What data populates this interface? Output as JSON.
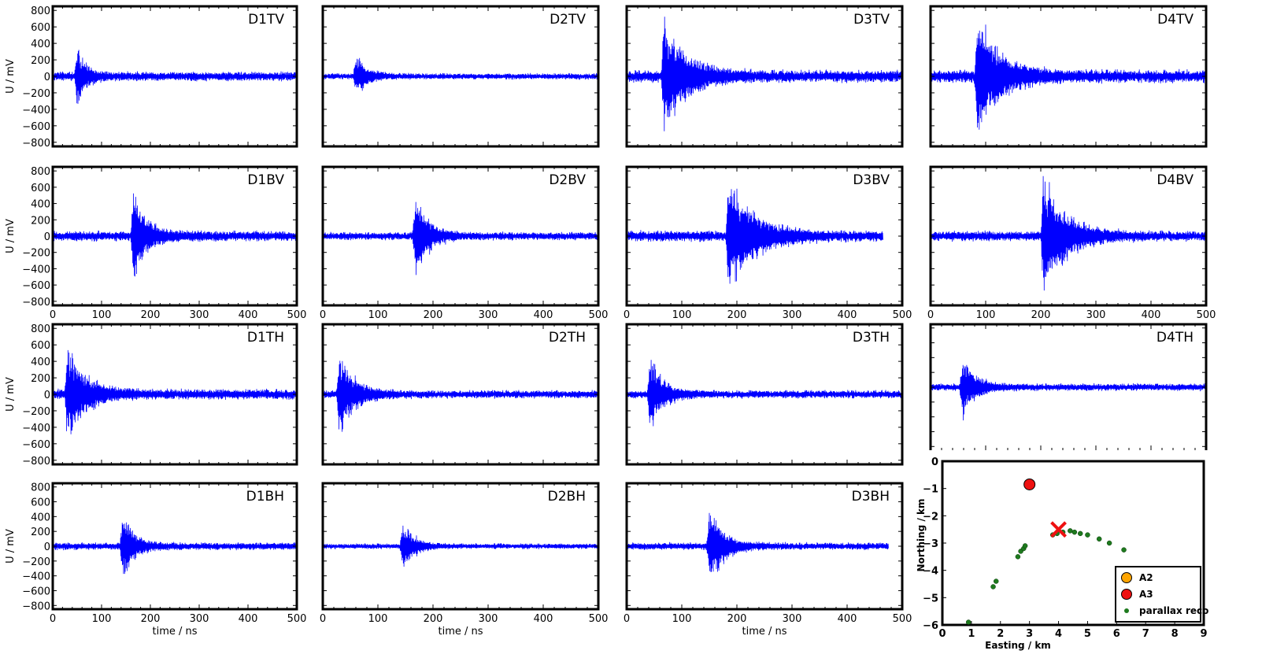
{
  "chart_data": {
    "type": "line",
    "waveform_axes": {
      "x_label": "time / ns",
      "y_label": "U / mV",
      "xlim": [
        0,
        500
      ],
      "ylim": [
        -850,
        850
      ],
      "x_ticks": [
        "0",
        "100",
        "200",
        "300",
        "400",
        "500"
      ],
      "y_ticks": [
        "800",
        "600",
        "400",
        "200",
        "0",
        "−200",
        "−400",
        "−600",
        "−800"
      ],
      "trace_color": "#0000ff"
    },
    "panels": [
      {
        "id": "D1TV",
        "row": 0,
        "col": 0,
        "title": "D1TV",
        "end": 500,
        "noise": 45,
        "bursts": [
          {
            "t": 50,
            "amp": 380,
            "dur": 40
          }
        ]
      },
      {
        "id": "D2TV",
        "row": 0,
        "col": 1,
        "title": "D2TV",
        "end": 500,
        "noise": 30,
        "bursts": [
          {
            "t": 60,
            "amp": 270,
            "dur": 45
          }
        ]
      },
      {
        "id": "D3TV",
        "row": 0,
        "col": 2,
        "title": "D3TV",
        "end": 500,
        "noise": 60,
        "bursts": [
          {
            "t": 68,
            "amp": 760,
            "dur": 90
          }
        ]
      },
      {
        "id": "D4TV",
        "row": 0,
        "col": 3,
        "title": "D4TV",
        "end": 500,
        "noise": 65,
        "bursts": [
          {
            "t": 85,
            "amp": 820,
            "dur": 90
          }
        ]
      },
      {
        "id": "D1BV",
        "row": 1,
        "col": 0,
        "title": "D1BV",
        "end": 500,
        "noise": 50,
        "bursts": [
          {
            "t": 165,
            "amp": 600,
            "dur": 60
          }
        ]
      },
      {
        "id": "D2BV",
        "row": 1,
        "col": 1,
        "title": "D2BV",
        "end": 500,
        "noise": 40,
        "bursts": [
          {
            "t": 168,
            "amp": 600,
            "dur": 50
          }
        ]
      },
      {
        "id": "D3BV",
        "row": 1,
        "col": 2,
        "title": "D3BV",
        "end": 465,
        "noise": 55,
        "bursts": [
          {
            "t": 185,
            "amp": 800,
            "dur": 100
          }
        ]
      },
      {
        "id": "D4BV",
        "row": 1,
        "col": 3,
        "title": "D4BV",
        "end": 500,
        "noise": 50,
        "bursts": [
          {
            "t": 205,
            "amp": 830,
            "dur": 90
          }
        ]
      },
      {
        "id": "D1TH",
        "row": 2,
        "col": 0,
        "title": "D1TH",
        "end": 500,
        "noise": 50,
        "bursts": [
          {
            "t": 30,
            "amp": 650,
            "dur": 80
          }
        ]
      },
      {
        "id": "D2TH",
        "row": 2,
        "col": 1,
        "title": "D2TH",
        "end": 500,
        "noise": 40,
        "bursts": [
          {
            "t": 30,
            "amp": 580,
            "dur": 60
          }
        ]
      },
      {
        "id": "D3TH",
        "row": 2,
        "col": 2,
        "title": "D3TH",
        "end": 500,
        "noise": 40,
        "bursts": [
          {
            "t": 42,
            "amp": 500,
            "dur": 50
          }
        ]
      },
      {
        "id": "D4TH",
        "row": 2,
        "col": 3,
        "title": "D4TH",
        "end": 500,
        "noise": 40,
        "bursts": [
          {
            "t": 58,
            "amp": 450,
            "dur": 50
          }
        ]
      },
      {
        "id": "D1BH",
        "row": 3,
        "col": 0,
        "title": "D1BH",
        "end": 500,
        "noise": 40,
        "bursts": [
          {
            "t": 143,
            "amp": 480,
            "dur": 50
          }
        ]
      },
      {
        "id": "D2BH",
        "row": 3,
        "col": 1,
        "title": "D2BH",
        "end": 500,
        "noise": 30,
        "bursts": [
          {
            "t": 145,
            "amp": 380,
            "dur": 45
          }
        ]
      },
      {
        "id": "D3BH",
        "row": 3,
        "col": 2,
        "title": "D3BH",
        "end": 475,
        "noise": 40,
        "bursts": [
          {
            "t": 150,
            "amp": 620,
            "dur": 55
          }
        ]
      }
    ],
    "map": {
      "type": "scatter",
      "xlabel": "Easting / km",
      "ylabel": "Northing / km",
      "xlim": [
        0,
        9
      ],
      "ylim": [
        -6,
        0
      ],
      "x_ticks": [
        "0",
        "1",
        "2",
        "3",
        "4",
        "5",
        "6",
        "7",
        "8",
        "9"
      ],
      "y_ticks": [
        "0",
        "−1",
        "−2",
        "−3",
        "−4",
        "−5",
        "−6"
      ],
      "A3": {
        "x": 3.0,
        "y": -0.85,
        "color": "#ee1111"
      },
      "reconstructed_source": {
        "x": 4.0,
        "y": -2.5,
        "color": "#ee1111"
      },
      "parallax_points": [
        {
          "x": 0.9,
          "y": -5.9
        },
        {
          "x": 1.75,
          "y": -4.6
        },
        {
          "x": 1.85,
          "y": -4.4
        },
        {
          "x": 2.6,
          "y": -3.5
        },
        {
          "x": 2.7,
          "y": -3.3
        },
        {
          "x": 2.8,
          "y": -3.2
        },
        {
          "x": 2.85,
          "y": -3.1
        },
        {
          "x": 3.8,
          "y": -2.7
        },
        {
          "x": 3.95,
          "y": -2.65
        },
        {
          "x": 4.15,
          "y": -2.6
        },
        {
          "x": 4.4,
          "y": -2.55
        },
        {
          "x": 4.55,
          "y": -2.6
        },
        {
          "x": 4.75,
          "y": -2.65
        },
        {
          "x": 5.0,
          "y": -2.7
        },
        {
          "x": 5.4,
          "y": -2.85
        },
        {
          "x": 5.75,
          "y": -3.0
        },
        {
          "x": 6.25,
          "y": -3.25
        }
      ],
      "legend": [
        {
          "label": "A2",
          "color": "#ffa500",
          "marker": "circle"
        },
        {
          "label": "A3",
          "color": "#ee1111",
          "marker": "circle"
        },
        {
          "label": "parallax reco",
          "color": "#1e7a1e",
          "marker": "dot"
        }
      ]
    }
  }
}
